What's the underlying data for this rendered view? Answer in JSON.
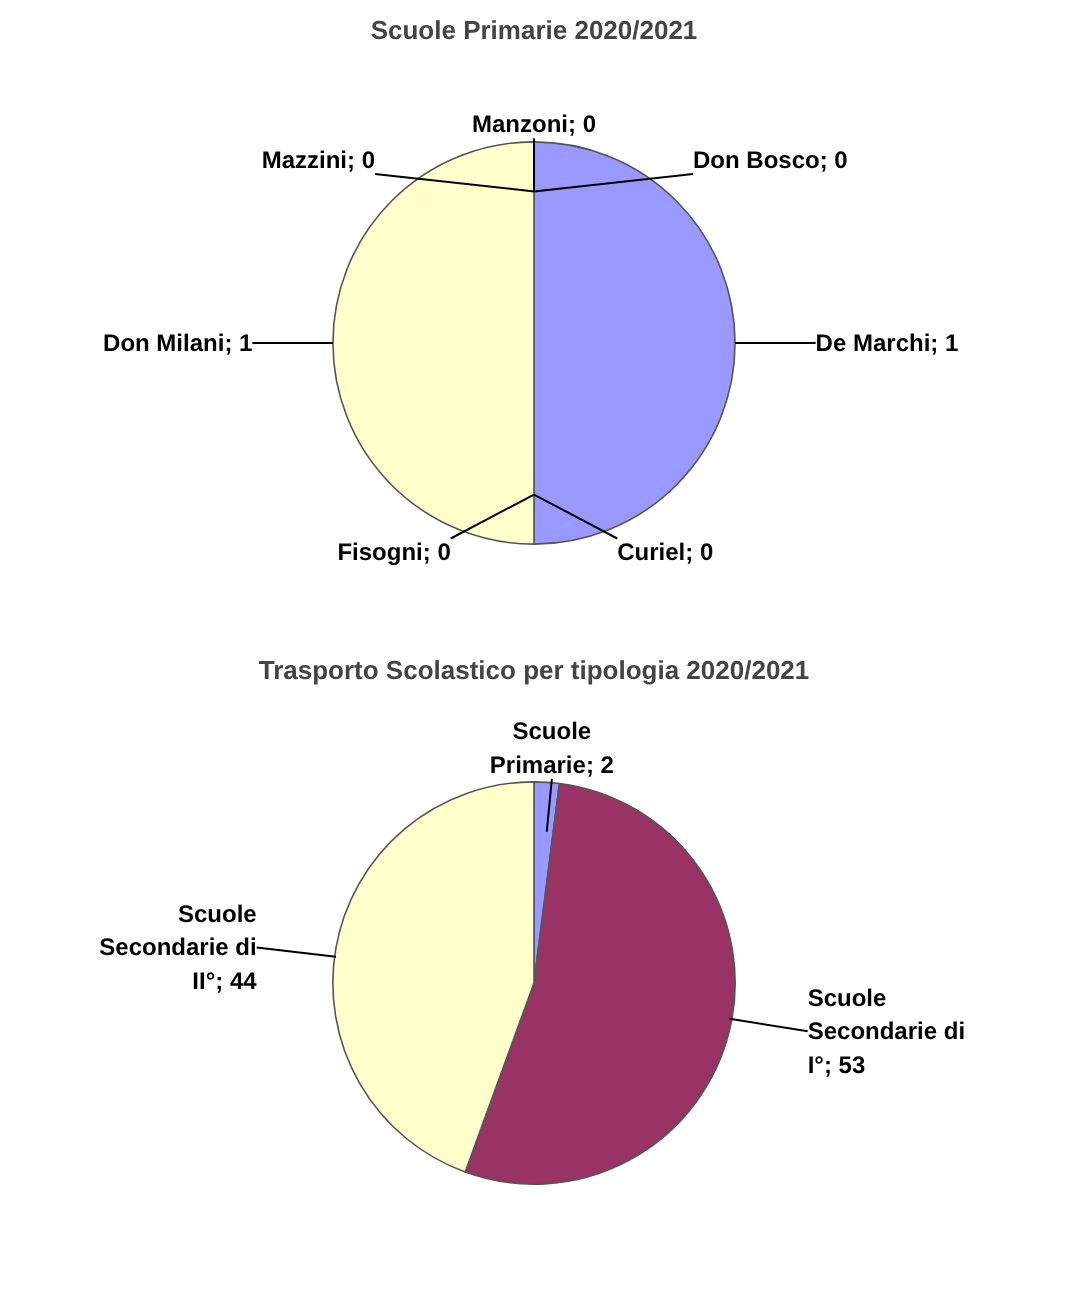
{
  "chart_data": [
    {
      "type": "pie",
      "title": "Scuole Primarie 2020/2021",
      "values": [
        1,
        0,
        0,
        1,
        0,
        0,
        0
      ],
      "colors": [
        "#9999ff",
        "#993366",
        "#ffffcc",
        "#ffffcc",
        "#ccffff",
        "#660066",
        "#ff8080"
      ],
      "value_labels": [
        "De Marchi; 1",
        "Curiel; 0",
        "Fisogni; 0",
        "Don Milani; 1",
        "Mazzini; 0",
        "Manzoni; 0",
        "Don Bosco; 0"
      ]
    },
    {
      "type": "pie",
      "title": "Trasporto Scolastico per tipologia 2020/2021",
      "values": [
        2,
        53,
        44
      ],
      "colors": [
        "#9999ff",
        "#993366",
        "#ffffcc"
      ],
      "value_labels": [
        "Scuole Primarie; 2",
        "Scuole Secondarie di I°; 53",
        "Scuole Secondarie di II°; 44"
      ]
    }
  ]
}
